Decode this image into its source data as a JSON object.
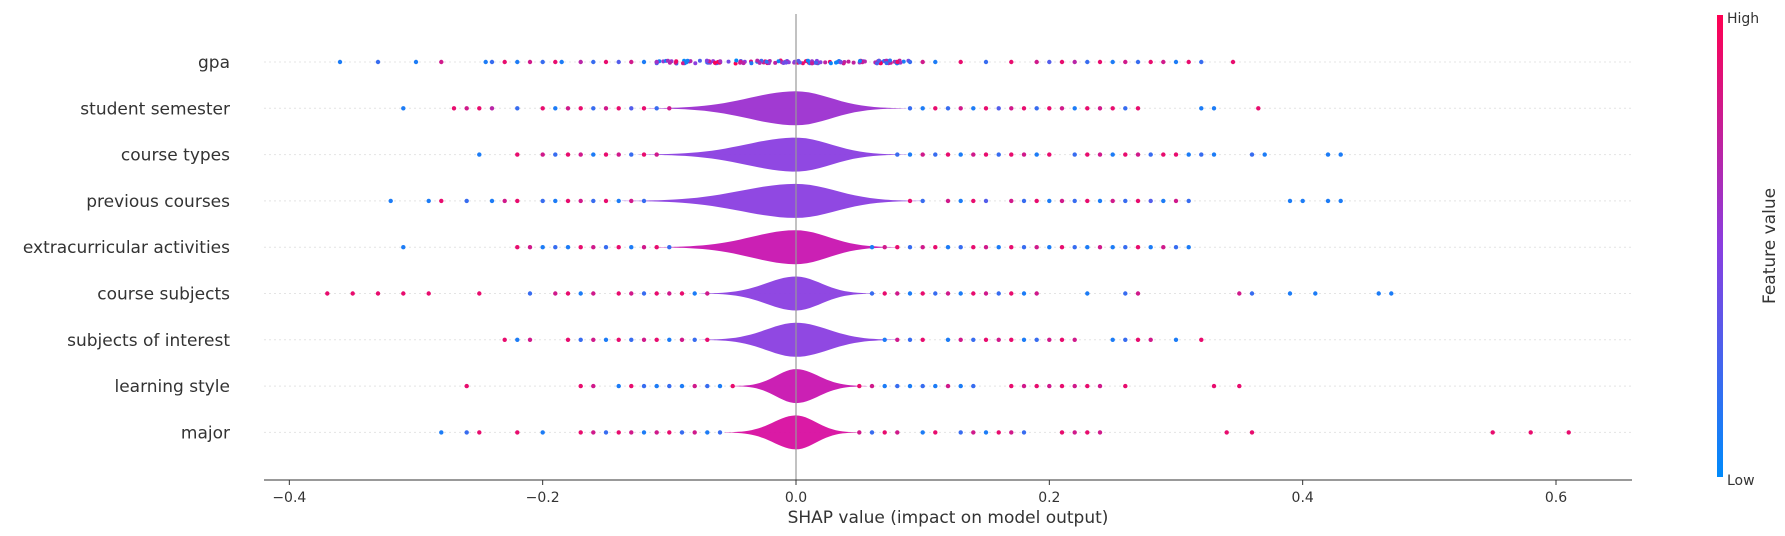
{
  "chart_data": {
    "type": "scatter",
    "subtype": "shap-violin-summary",
    "xlabel": "SHAP value (impact on model output)",
    "xlim": [
      -0.42,
      0.66
    ],
    "x_ticks": [
      -0.4,
      -0.2,
      0.0,
      0.2,
      0.4,
      0.6
    ],
    "x_tick_labels": [
      "−0.4",
      "−0.2",
      "0.0",
      "0.2",
      "0.4",
      "0.6"
    ],
    "zero_line": 0.0,
    "colorbar": {
      "label": "Feature value",
      "high_label": "High",
      "low_label": "Low",
      "low_color": "#008bfb",
      "high_color": "#ff0052"
    },
    "features": [
      {
        "name": "gpa",
        "range": [
          -0.36,
          0.345
        ],
        "violin_halfwidth": [
          0.0,
          0.0
        ],
        "violin_color": "#8a3ee0",
        "outliers": [
          -0.36,
          -0.33,
          -0.3,
          -0.28,
          -0.245,
          -0.24,
          -0.23,
          -0.22,
          -0.21,
          -0.2,
          -0.19,
          -0.185,
          -0.17,
          -0.16,
          -0.15,
          -0.14,
          -0.13,
          -0.12,
          -0.11,
          0.08,
          0.09,
          0.1,
          0.11,
          0.13,
          0.15,
          0.17,
          0.19,
          0.2,
          0.21,
          0.22,
          0.23,
          0.24,
          0.25,
          0.26,
          0.27,
          0.28,
          0.29,
          0.3,
          0.31,
          0.32,
          0.345
        ],
        "outlier_values": [
          0.1,
          0.2,
          0.1,
          0.8,
          0.1,
          0.2,
          0.9,
          0.1,
          0.8,
          0.2,
          0.9,
          0.1,
          0.7,
          0.2,
          0.9,
          0.3,
          0.8,
          0.1,
          0.6,
          0.9,
          0.2,
          0.8,
          0.1,
          0.9,
          0.2,
          0.9,
          0.8,
          0.3,
          0.9,
          0.7,
          0.2,
          0.9,
          0.1,
          0.8,
          0.2,
          0.9,
          0.8,
          0.1,
          0.9,
          0.2,
          0.9
        ]
      },
      {
        "name": "student semester",
        "range": [
          -0.31,
          0.365
        ],
        "violin_halfwidth": [
          0.095,
          0.07
        ],
        "violin_color": "#9c2fd0",
        "outliers": [
          -0.31,
          -0.27,
          -0.26,
          -0.25,
          -0.24,
          -0.22,
          -0.2,
          -0.19,
          -0.18,
          -0.17,
          -0.16,
          -0.15,
          -0.14,
          -0.13,
          -0.12,
          -0.11,
          -0.1,
          0.09,
          0.1,
          0.11,
          0.12,
          0.13,
          0.14,
          0.15,
          0.16,
          0.17,
          0.18,
          0.19,
          0.2,
          0.21,
          0.22,
          0.23,
          0.24,
          0.25,
          0.26,
          0.27,
          0.32,
          0.33,
          0.365
        ],
        "outlier_values": [
          0.1,
          0.9,
          0.8,
          0.9,
          0.7,
          0.2,
          0.9,
          0.1,
          0.8,
          0.9,
          0.2,
          0.8,
          0.9,
          0.3,
          0.9,
          0.2,
          0.8,
          0.2,
          0.1,
          0.9,
          0.2,
          0.8,
          0.1,
          0.9,
          0.3,
          0.8,
          0.9,
          0.2,
          0.9,
          0.8,
          0.1,
          0.9,
          0.8,
          0.9,
          0.2,
          0.9,
          0.1,
          0.1,
          0.9
        ]
      },
      {
        "name": "course types",
        "range": [
          -0.25,
          0.43
        ],
        "violin_halfwidth": [
          0.1,
          0.07
        ],
        "violin_color": "#8a3ee0",
        "outliers": [
          -0.25,
          -0.22,
          -0.2,
          -0.19,
          -0.18,
          -0.17,
          -0.16,
          -0.15,
          -0.14,
          -0.13,
          -0.12,
          -0.11,
          0.08,
          0.09,
          0.1,
          0.11,
          0.12,
          0.13,
          0.14,
          0.15,
          0.16,
          0.17,
          0.18,
          0.19,
          0.2,
          0.22,
          0.23,
          0.24,
          0.25,
          0.26,
          0.27,
          0.28,
          0.29,
          0.3,
          0.31,
          0.32,
          0.33,
          0.36,
          0.37,
          0.42,
          0.43
        ],
        "outlier_values": [
          0.1,
          0.9,
          0.8,
          0.2,
          0.9,
          0.8,
          0.1,
          0.9,
          0.8,
          0.2,
          0.9,
          0.8,
          0.2,
          0.1,
          0.8,
          0.2,
          0.9,
          0.1,
          0.8,
          0.9,
          0.2,
          0.9,
          0.8,
          0.1,
          0.9,
          0.2,
          0.9,
          0.8,
          0.1,
          0.9,
          0.8,
          0.2,
          0.9,
          0.9,
          0.1,
          0.2,
          0.1,
          0.2,
          0.1,
          0.1,
          0.1
        ]
      },
      {
        "name": "previous courses",
        "range": [
          -0.32,
          0.43
        ],
        "violin_halfwidth": [
          0.11,
          0.08
        ],
        "violin_color": "#8a3ee0",
        "outliers": [
          -0.32,
          -0.29,
          -0.28,
          -0.26,
          -0.24,
          -0.23,
          -0.22,
          -0.2,
          -0.19,
          -0.18,
          -0.17,
          -0.16,
          -0.15,
          -0.14,
          -0.13,
          -0.12,
          0.09,
          0.1,
          0.12,
          0.13,
          0.14,
          0.15,
          0.17,
          0.18,
          0.19,
          0.2,
          0.21,
          0.22,
          0.23,
          0.24,
          0.25,
          0.26,
          0.27,
          0.28,
          0.29,
          0.3,
          0.31,
          0.39,
          0.4,
          0.42,
          0.43
        ],
        "outlier_values": [
          0.1,
          0.1,
          0.9,
          0.2,
          0.1,
          0.8,
          0.9,
          0.2,
          0.1,
          0.9,
          0.8,
          0.2,
          0.9,
          0.1,
          0.8,
          0.2,
          0.9,
          0.2,
          0.8,
          0.1,
          0.9,
          0.3,
          0.8,
          0.2,
          0.9,
          0.1,
          0.8,
          0.2,
          0.9,
          0.1,
          0.8,
          0.2,
          0.9,
          0.3,
          0.1,
          0.8,
          0.2,
          0.1,
          0.1,
          0.1,
          0.1
        ]
      },
      {
        "name": "extracurricular activities",
        "range": [
          -0.31,
          0.31
        ],
        "violin_halfwidth": [
          0.09,
          0.065
        ],
        "violin_color": "#c814b0",
        "outliers": [
          -0.31,
          -0.22,
          -0.21,
          -0.2,
          -0.19,
          -0.18,
          -0.17,
          -0.16,
          -0.15,
          -0.14,
          -0.13,
          -0.12,
          -0.11,
          -0.1,
          0.06,
          0.07,
          0.08,
          0.09,
          0.1,
          0.11,
          0.12,
          0.13,
          0.14,
          0.15,
          0.16,
          0.17,
          0.18,
          0.19,
          0.2,
          0.21,
          0.22,
          0.23,
          0.24,
          0.25,
          0.26,
          0.27,
          0.28,
          0.29,
          0.3,
          0.31
        ],
        "outlier_values": [
          0.1,
          0.9,
          0.8,
          0.1,
          0.2,
          0.1,
          0.9,
          0.8,
          0.2,
          0.9,
          0.1,
          0.8,
          0.9,
          0.2,
          0.1,
          0.8,
          0.9,
          0.2,
          0.8,
          0.9,
          0.1,
          0.2,
          0.9,
          0.8,
          0.1,
          0.9,
          0.2,
          0.8,
          0.1,
          0.9,
          0.2,
          0.1,
          0.8,
          0.1,
          0.2,
          0.9,
          0.1,
          0.8,
          0.2,
          0.1
        ]
      },
      {
        "name": "course subjects",
        "range": [
          -0.37,
          0.47
        ],
        "violin_halfwidth": [
          0.06,
          0.05
        ],
        "violin_color": "#8a3ee0",
        "outliers": [
          -0.37,
          -0.35,
          -0.33,
          -0.31,
          -0.29,
          -0.25,
          -0.21,
          -0.19,
          -0.18,
          -0.17,
          -0.16,
          -0.14,
          -0.13,
          -0.12,
          -0.11,
          -0.1,
          -0.09,
          -0.08,
          -0.07,
          0.06,
          0.07,
          0.08,
          0.09,
          0.1,
          0.11,
          0.12,
          0.13,
          0.14,
          0.15,
          0.16,
          0.17,
          0.18,
          0.19,
          0.23,
          0.26,
          0.27,
          0.35,
          0.36,
          0.39,
          0.41,
          0.46,
          0.47
        ],
        "outlier_values": [
          0.9,
          0.9,
          0.9,
          0.9,
          0.9,
          0.9,
          0.2,
          0.8,
          0.9,
          0.1,
          0.8,
          0.9,
          0.8,
          0.2,
          0.9,
          0.8,
          0.9,
          0.1,
          0.8,
          0.2,
          0.9,
          0.8,
          0.1,
          0.9,
          0.2,
          0.8,
          0.1,
          0.9,
          0.8,
          0.2,
          0.9,
          0.1,
          0.8,
          0.1,
          0.2,
          0.8,
          0.8,
          0.2,
          0.1,
          0.1,
          0.1,
          0.1
        ]
      },
      {
        "name": "subjects of interest",
        "range": [
          -0.23,
          0.32
        ],
        "violin_halfwidth": [
          0.06,
          0.065
        ],
        "violin_color": "#8a3ee0",
        "outliers": [
          -0.23,
          -0.22,
          -0.21,
          -0.18,
          -0.17,
          -0.16,
          -0.15,
          -0.14,
          -0.13,
          -0.12,
          -0.11,
          -0.1,
          -0.09,
          -0.08,
          -0.07,
          0.07,
          0.08,
          0.09,
          0.1,
          0.12,
          0.13,
          0.14,
          0.15,
          0.16,
          0.17,
          0.18,
          0.19,
          0.2,
          0.21,
          0.22,
          0.25,
          0.26,
          0.27,
          0.28,
          0.3,
          0.32
        ],
        "outlier_values": [
          0.9,
          0.1,
          0.8,
          0.9,
          0.2,
          0.8,
          0.1,
          0.9,
          0.2,
          0.8,
          0.9,
          0.1,
          0.8,
          0.2,
          0.9,
          0.1,
          0.8,
          0.2,
          0.9,
          0.1,
          0.8,
          0.2,
          0.9,
          0.8,
          0.9,
          0.1,
          0.2,
          0.8,
          0.9,
          0.8,
          0.1,
          0.2,
          0.9,
          0.8,
          0.1,
          0.9
        ]
      },
      {
        "name": "learning style",
        "range": [
          -0.26,
          0.35
        ],
        "violin_halfwidth": [
          0.04,
          0.045
        ],
        "violin_color": "#c814b0",
        "outliers": [
          -0.26,
          -0.17,
          -0.16,
          -0.14,
          -0.13,
          -0.12,
          -0.11,
          -0.1,
          -0.09,
          -0.08,
          -0.07,
          -0.06,
          -0.05,
          0.05,
          0.06,
          0.07,
          0.08,
          0.09,
          0.1,
          0.11,
          0.12,
          0.13,
          0.14,
          0.17,
          0.18,
          0.19,
          0.2,
          0.21,
          0.22,
          0.23,
          0.24,
          0.26,
          0.33,
          0.35
        ],
        "outlier_values": [
          0.9,
          0.9,
          0.8,
          0.1,
          0.9,
          0.2,
          0.1,
          0.2,
          0.1,
          0.8,
          0.2,
          0.1,
          0.9,
          0.9,
          0.8,
          0.1,
          0.2,
          0.1,
          0.2,
          0.1,
          0.8,
          0.1,
          0.2,
          0.9,
          0.8,
          0.9,
          0.8,
          0.9,
          0.8,
          0.9,
          0.8,
          0.9,
          0.9,
          0.9
        ]
      },
      {
        "name": "major",
        "range": [
          -0.28,
          0.61
        ],
        "violin_halfwidth": [
          0.045,
          0.04
        ],
        "violin_color": "#d80ea0",
        "outliers": [
          -0.28,
          -0.26,
          -0.25,
          -0.22,
          -0.2,
          -0.17,
          -0.16,
          -0.15,
          -0.14,
          -0.13,
          -0.12,
          -0.11,
          -0.1,
          -0.09,
          -0.08,
          -0.07,
          -0.06,
          0.05,
          0.06,
          0.07,
          0.08,
          0.1,
          0.11,
          0.13,
          0.14,
          0.15,
          0.16,
          0.17,
          0.18,
          0.21,
          0.22,
          0.23,
          0.24,
          0.34,
          0.36,
          0.55,
          0.58,
          0.61
        ],
        "outlier_values": [
          0.1,
          0.2,
          0.9,
          0.9,
          0.1,
          0.9,
          0.8,
          0.2,
          0.9,
          0.8,
          0.1,
          0.8,
          0.9,
          0.2,
          0.8,
          0.1,
          0.2,
          0.8,
          0.2,
          0.9,
          0.8,
          0.1,
          0.9,
          0.2,
          0.8,
          0.1,
          0.9,
          0.8,
          0.2,
          0.9,
          0.8,
          0.9,
          0.8,
          0.9,
          0.9,
          0.9,
          0.9,
          0.9
        ]
      }
    ]
  }
}
